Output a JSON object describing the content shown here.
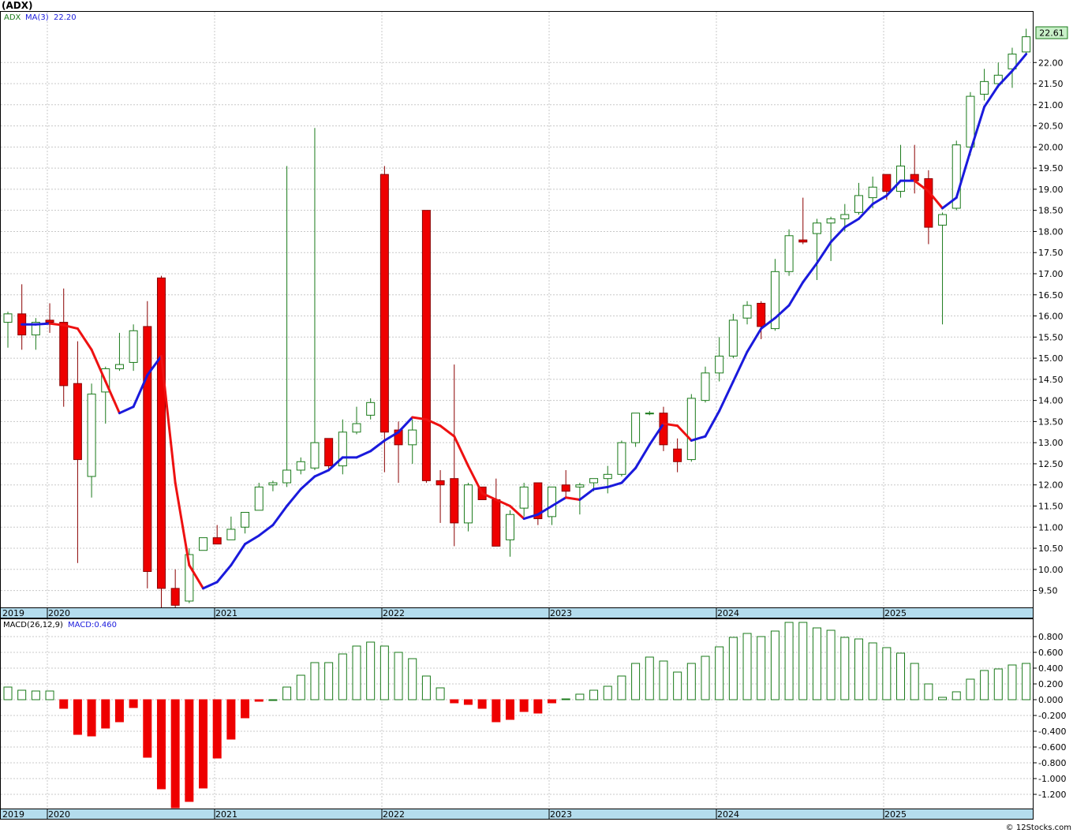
{
  "title": "(ADX)",
  "footer": "© 12Stocks.com",
  "colors": {
    "up_border": "#1a7a1a",
    "down_fill": "#ee0000",
    "down_border": "#8b0000",
    "ma_up": "#1a1adc",
    "ma_down": "#ee1111",
    "axis_band": "#b4dced",
    "grid": "#c8c8c8",
    "price_tag_bg": "#c8f0c8"
  },
  "chart_data": [
    {
      "type": "candlestick",
      "symbol": "ADX",
      "interval": "monthly",
      "legend": {
        "symbol": "ADX",
        "ma_label": "MA(3)",
        "ma_value": "22.20"
      },
      "last_price_label": "22.61",
      "ylim": [
        9.1,
        23.2
      ],
      "y_ticks": [
        "9.50",
        "10.00",
        "10.50",
        "11.00",
        "11.50",
        "12.00",
        "12.50",
        "13.00",
        "13.50",
        "14.00",
        "14.50",
        "15.00",
        "15.50",
        "16.00",
        "16.50",
        "17.00",
        "17.50",
        "18.00",
        "18.50",
        "19.00",
        "19.50",
        "20.00",
        "20.50",
        "21.00",
        "21.50",
        "22.00"
      ],
      "x_labels": [
        "2019",
        "2020",
        "2021",
        "2022",
        "2023",
        "2024",
        "2025"
      ],
      "candles": [
        {
          "o": 15.85,
          "h": 16.1,
          "l": 15.25,
          "c": 16.05
        },
        {
          "o": 16.05,
          "h": 16.75,
          "l": 15.2,
          "c": 15.55
        },
        {
          "o": 15.55,
          "h": 15.95,
          "l": 15.2,
          "c": 15.85
        },
        {
          "o": 15.9,
          "h": 16.3,
          "l": 15.6,
          "c": 15.85
        },
        {
          "o": 15.85,
          "h": 16.65,
          "l": 13.85,
          "c": 14.35
        },
        {
          "o": 14.4,
          "h": 15.4,
          "l": 10.15,
          "c": 12.6
        },
        {
          "o": 12.2,
          "h": 14.4,
          "l": 11.7,
          "c": 14.15
        },
        {
          "o": 14.2,
          "h": 14.8,
          "l": 13.45,
          "c": 14.75
        },
        {
          "o": 14.75,
          "h": 15.6,
          "l": 14.7,
          "c": 14.85
        },
        {
          "o": 14.9,
          "h": 15.8,
          "l": 14.7,
          "c": 15.65
        },
        {
          "o": 15.75,
          "h": 16.35,
          "l": 9.55,
          "c": 9.95
        },
        {
          "o": 16.9,
          "h": 16.95,
          "l": 9.1,
          "c": 9.55
        },
        {
          "o": 9.55,
          "h": 10.0,
          "l": 9.1,
          "c": 9.15
        },
        {
          "o": 9.25,
          "h": 10.5,
          "l": 9.2,
          "c": 10.35
        },
        {
          "o": 10.45,
          "h": 10.75,
          "l": 10.45,
          "c": 10.75
        },
        {
          "o": 10.75,
          "h": 11.05,
          "l": 10.65,
          "c": 10.6
        },
        {
          "o": 10.7,
          "h": 11.25,
          "l": 10.7,
          "c": 10.95
        },
        {
          "o": 11.0,
          "h": 11.35,
          "l": 10.85,
          "c": 11.35
        },
        {
          "o": 11.4,
          "h": 12.05,
          "l": 11.4,
          "c": 11.95
        },
        {
          "o": 12.0,
          "h": 12.1,
          "l": 11.85,
          "c": 12.05
        },
        {
          "o": 12.05,
          "h": 19.55,
          "l": 11.95,
          "c": 12.35
        },
        {
          "o": 12.35,
          "h": 12.65,
          "l": 12.25,
          "c": 12.55
        },
        {
          "o": 12.4,
          "h": 20.45,
          "l": 12.35,
          "c": 13.0
        },
        {
          "o": 13.1,
          "h": 13.1,
          "l": 12.35,
          "c": 12.45
        },
        {
          "o": 12.45,
          "h": 13.55,
          "l": 12.25,
          "c": 13.25
        },
        {
          "o": 13.25,
          "h": 13.85,
          "l": 13.2,
          "c": 13.45
        },
        {
          "o": 13.65,
          "h": 14.05,
          "l": 13.55,
          "c": 13.95
        },
        {
          "o": 19.35,
          "h": 19.55,
          "l": 12.3,
          "c": 13.25
        },
        {
          "o": 13.3,
          "h": 13.5,
          "l": 12.05,
          "c": 12.95
        },
        {
          "o": 12.95,
          "h": 13.55,
          "l": 12.5,
          "c": 13.3
        },
        {
          "o": 18.5,
          "h": 18.5,
          "l": 12.05,
          "c": 12.1
        },
        {
          "o": 12.1,
          "h": 12.35,
          "l": 11.1,
          "c": 12.0
        },
        {
          "o": 12.15,
          "h": 14.85,
          "l": 10.55,
          "c": 11.1
        },
        {
          "o": 11.1,
          "h": 12.05,
          "l": 10.9,
          "c": 12.0
        },
        {
          "o": 11.95,
          "h": 11.95,
          "l": 11.65,
          "c": 11.65
        },
        {
          "o": 11.65,
          "h": 12.15,
          "l": 10.55,
          "c": 10.55
        },
        {
          "o": 10.7,
          "h": 11.4,
          "l": 10.3,
          "c": 11.3
        },
        {
          "o": 11.45,
          "h": 12.05,
          "l": 11.25,
          "c": 11.95
        },
        {
          "o": 12.05,
          "h": 12.05,
          "l": 11.05,
          "c": 11.2
        },
        {
          "o": 11.25,
          "h": 11.95,
          "l": 11.05,
          "c": 11.95
        },
        {
          "o": 12.0,
          "h": 12.35,
          "l": 11.7,
          "c": 11.85
        },
        {
          "o": 11.95,
          "h": 12.05,
          "l": 11.3,
          "c": 12.0
        },
        {
          "o": 12.05,
          "h": 12.15,
          "l": 11.85,
          "c": 12.15
        },
        {
          "o": 12.15,
          "h": 12.45,
          "l": 11.8,
          "c": 12.25
        },
        {
          "o": 12.25,
          "h": 13.05,
          "l": 12.2,
          "c": 13.0
        },
        {
          "o": 13.0,
          "h": 13.7,
          "l": 12.9,
          "c": 13.7
        },
        {
          "o": 13.7,
          "h": 13.75,
          "l": 13.65,
          "c": 13.7
        },
        {
          "o": 13.7,
          "h": 13.85,
          "l": 12.8,
          "c": 12.95
        },
        {
          "o": 12.85,
          "h": 13.1,
          "l": 12.3,
          "c": 12.55
        },
        {
          "o": 12.6,
          "h": 14.15,
          "l": 12.55,
          "c": 14.05
        },
        {
          "o": 14.0,
          "h": 14.8,
          "l": 13.95,
          "c": 14.65
        },
        {
          "o": 14.65,
          "h": 15.5,
          "l": 14.45,
          "c": 15.05
        },
        {
          "o": 15.05,
          "h": 16.05,
          "l": 15.0,
          "c": 15.9
        },
        {
          "o": 15.95,
          "h": 16.35,
          "l": 15.8,
          "c": 16.25
        },
        {
          "o": 16.3,
          "h": 16.35,
          "l": 15.45,
          "c": 15.75
        },
        {
          "o": 15.7,
          "h": 17.35,
          "l": 15.65,
          "c": 17.05
        },
        {
          "o": 17.05,
          "h": 18.05,
          "l": 16.95,
          "c": 17.9
        },
        {
          "o": 17.8,
          "h": 18.8,
          "l": 17.7,
          "c": 17.75
        },
        {
          "o": 17.95,
          "h": 18.3,
          "l": 16.85,
          "c": 18.2
        },
        {
          "o": 18.2,
          "h": 18.35,
          "l": 17.3,
          "c": 18.3
        },
        {
          "o": 18.3,
          "h": 18.65,
          "l": 18.0,
          "c": 18.4
        },
        {
          "o": 18.45,
          "h": 19.15,
          "l": 18.4,
          "c": 18.85
        },
        {
          "o": 18.8,
          "h": 19.3,
          "l": 18.55,
          "c": 19.05
        },
        {
          "o": 19.35,
          "h": 19.35,
          "l": 18.75,
          "c": 18.95
        },
        {
          "o": 18.95,
          "h": 20.05,
          "l": 18.8,
          "c": 19.55
        },
        {
          "o": 19.35,
          "h": 20.05,
          "l": 18.9,
          "c": 19.2
        },
        {
          "o": 19.25,
          "h": 19.45,
          "l": 17.7,
          "c": 18.1
        },
        {
          "o": 18.15,
          "h": 18.45,
          "l": 15.8,
          "c": 18.4
        },
        {
          "o": 18.55,
          "h": 20.15,
          "l": 18.5,
          "c": 20.05
        },
        {
          "o": 20.0,
          "h": 21.3,
          "l": 19.8,
          "c": 21.2
        },
        {
          "o": 21.25,
          "h": 21.85,
          "l": 21.1,
          "c": 21.55
        },
        {
          "o": 21.5,
          "h": 22.0,
          "l": 21.4,
          "c": 21.7
        },
        {
          "o": 21.85,
          "h": 22.35,
          "l": 21.4,
          "c": 22.2
        },
        {
          "o": 22.25,
          "h": 22.8,
          "l": 22.2,
          "c": 22.61
        }
      ],
      "ma3": [
        15.8,
        15.8,
        15.82,
        15.78,
        15.7,
        15.2,
        14.45,
        13.7,
        13.85,
        14.6,
        15.05,
        12.05,
        10.1,
        9.55,
        9.7,
        10.1,
        10.6,
        10.8,
        11.05,
        11.5,
        11.9,
        12.2,
        12.35,
        12.65,
        12.65,
        12.8,
        13.05,
        13.25,
        13.6,
        13.55,
        13.4,
        13.15,
        12.45,
        11.8,
        11.65,
        11.5,
        11.2,
        11.3,
        11.5,
        11.7,
        11.65,
        11.9,
        11.95,
        12.05,
        12.4,
        12.95,
        13.45,
        13.4,
        13.05,
        13.15,
        13.75,
        14.45,
        15.15,
        15.7,
        15.95,
        16.25,
        16.8,
        17.25,
        17.75,
        18.1,
        18.3,
        18.65,
        18.85,
        19.2,
        19.2,
        18.95,
        18.55,
        18.8,
        19.9,
        20.95,
        21.45,
        21.8,
        22.2
      ],
      "ma3_start_index": 1
    },
    {
      "type": "bar",
      "name": "MACD(26,12,9)",
      "legend": {
        "label": "MACD(26,12,9)",
        "value_label": "MACD:0.460"
      },
      "ylim": [
        -1.38,
        1.02
      ],
      "y_ticks": [
        "0.800",
        "0.600",
        "0.400",
        "0.200",
        "0.000",
        "-0.200",
        "-0.400",
        "-0.600",
        "-0.800",
        "-1.000",
        "-1.200"
      ],
      "x_labels": [
        "2019",
        "2020",
        "2021",
        "2022",
        "2023",
        "2024",
        "2025"
      ],
      "values": [
        0.16,
        0.12,
        0.11,
        0.11,
        -0.11,
        -0.44,
        -0.46,
        -0.36,
        -0.28,
        -0.1,
        -0.73,
        -1.13,
        -1.37,
        -1.29,
        -1.12,
        -0.74,
        -0.5,
        -0.23,
        -0.02,
        0.0,
        0.16,
        0.31,
        0.47,
        0.47,
        0.58,
        0.68,
        0.73,
        0.68,
        0.6,
        0.52,
        0.3,
        0.15,
        -0.04,
        -0.06,
        -0.11,
        -0.28,
        -0.25,
        -0.15,
        -0.17,
        -0.04,
        0.01,
        0.07,
        0.12,
        0.17,
        0.3,
        0.46,
        0.54,
        0.49,
        0.35,
        0.46,
        0.55,
        0.67,
        0.79,
        0.84,
        0.8,
        0.87,
        0.98,
        0.98,
        0.91,
        0.88,
        0.79,
        0.77,
        0.72,
        0.66,
        0.59,
        0.46,
        0.2,
        0.03,
        0.1,
        0.26,
        0.37,
        0.39,
        0.44,
        0.46
      ]
    }
  ]
}
